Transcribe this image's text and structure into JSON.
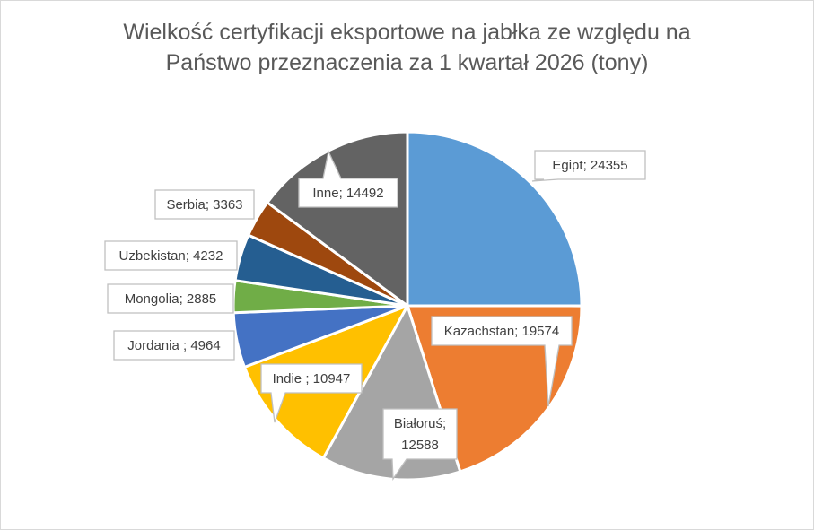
{
  "chart_data": {
    "type": "pie",
    "title": "Wielkość certyfikacji eksportowe na jabłka ze względu na\nPaństwo przeznaczenia  za 1 kwartał 2026 (tony)",
    "slices": [
      {
        "label": "Egipt",
        "value": 24355,
        "color": "#5b9bd5"
      },
      {
        "label": "Kazachstan",
        "value": 19574,
        "color": "#ed7d31"
      },
      {
        "label": "Białoruś",
        "value": 12588,
        "color": "#a5a5a5"
      },
      {
        "label": "Indie ",
        "value": 10947,
        "color": "#ffc000"
      },
      {
        "label": "Jordania ",
        "value": 4964,
        "color": "#4472c4"
      },
      {
        "label": "Mongolia",
        "value": 2885,
        "color": "#70ad47"
      },
      {
        "label": "Uzbekistan",
        "value": 4232,
        "color": "#255e91"
      },
      {
        "label": "Serbia",
        "value": 3363,
        "color": "#9e480e"
      },
      {
        "label": "Inne",
        "value": 14492,
        "color": "#636363"
      }
    ],
    "data_labels": [
      [
        "Egipt; 24355"
      ],
      [
        "Kazachstan; 19574"
      ],
      [
        "Białoruś;",
        "12588"
      ],
      [
        "Indie ; 10947"
      ],
      [
        "Jordania ; 4964"
      ],
      [
        "Mongolia; 2885"
      ],
      [
        "Uzbekistan; 4232"
      ],
      [
        "Serbia; 3363"
      ],
      [
        "Inne; 14492"
      ]
    ],
    "legend": "none"
  }
}
